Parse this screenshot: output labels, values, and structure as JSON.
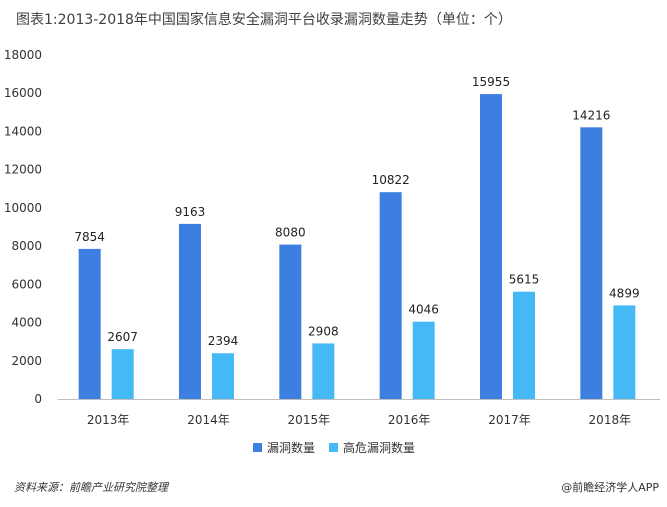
{
  "title": "图表1:2013-2018年中国国家信息安全漏洞平台收录漏洞数量走势（单位：个）",
  "footer": {
    "source": "资料来源：前瞻产业研究院整理",
    "brand": "@前瞻经济学人APP"
  },
  "colors": {
    "series1": "#3c7fe0",
    "series2": "#45b9f5"
  },
  "chart_data": {
    "type": "bar",
    "categories": [
      "2013年",
      "2014年",
      "2015年",
      "2016年",
      "2017年",
      "2018年"
    ],
    "series": [
      {
        "name": "漏洞数量",
        "values": [
          7854,
          9163,
          8080,
          10822,
          15955,
          14216
        ]
      },
      {
        "name": "高危漏洞数量",
        "values": [
          2607,
          2394,
          2908,
          4046,
          5615,
          4899
        ]
      }
    ],
    "yticks": [
      0,
      2000,
      4000,
      6000,
      8000,
      10000,
      12000,
      14000,
      16000,
      18000
    ],
    "ylim": [
      0,
      18000
    ],
    "xlabel": "",
    "ylabel": "",
    "grid": false,
    "legend_position": "bottom"
  }
}
